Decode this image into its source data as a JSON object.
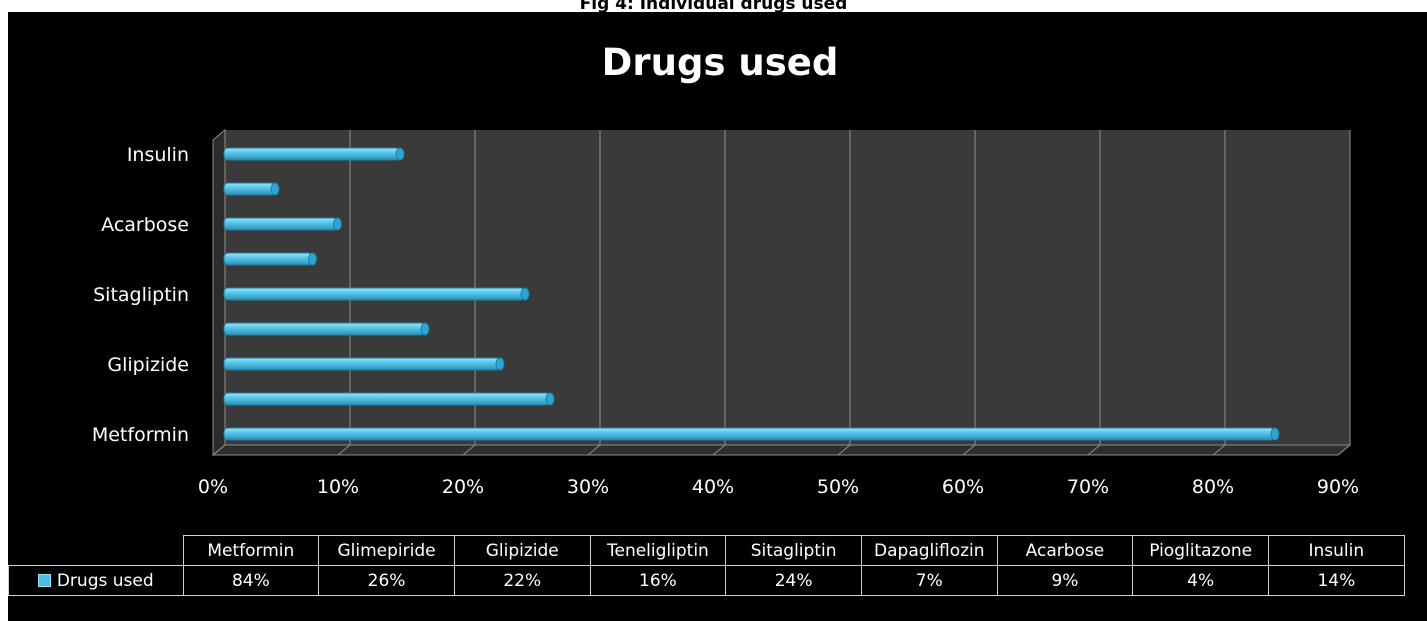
{
  "caption": "Fig 4: Individual drugs used",
  "chart_data": {
    "type": "bar",
    "orientation": "horizontal",
    "title": "Drugs used",
    "categories": [
      "Metformin",
      "Glimepiride",
      "Glipizide",
      "Teneligliptin",
      "Sitagliptin",
      "Dapagliflozin",
      "Acarbose",
      "Pioglitazone",
      "Insulin"
    ],
    "axis_labels_shown": [
      "Metformin",
      "",
      "Glipizide",
      "",
      "Sitagliptin",
      "",
      "Acarbose",
      "",
      "Insulin"
    ],
    "series": [
      {
        "name": "Drugs used",
        "values": [
          84,
          26,
          22,
          16,
          24,
          7,
          9,
          4,
          14
        ],
        "color": "#4bbfe2"
      }
    ],
    "xlim": [
      0,
      90
    ],
    "xticks": [
      "0%",
      "10%",
      "20%",
      "30%",
      "40%",
      "50%",
      "60%",
      "70%",
      "80%",
      "90%"
    ],
    "value_labels": [
      "84%",
      "26%",
      "22%",
      "16%",
      "24%",
      "7%",
      "9%",
      "4%",
      "14%"
    ],
    "grid": true,
    "background": "#000000",
    "plot_background": "#3a3a3a",
    "data_table": true
  }
}
